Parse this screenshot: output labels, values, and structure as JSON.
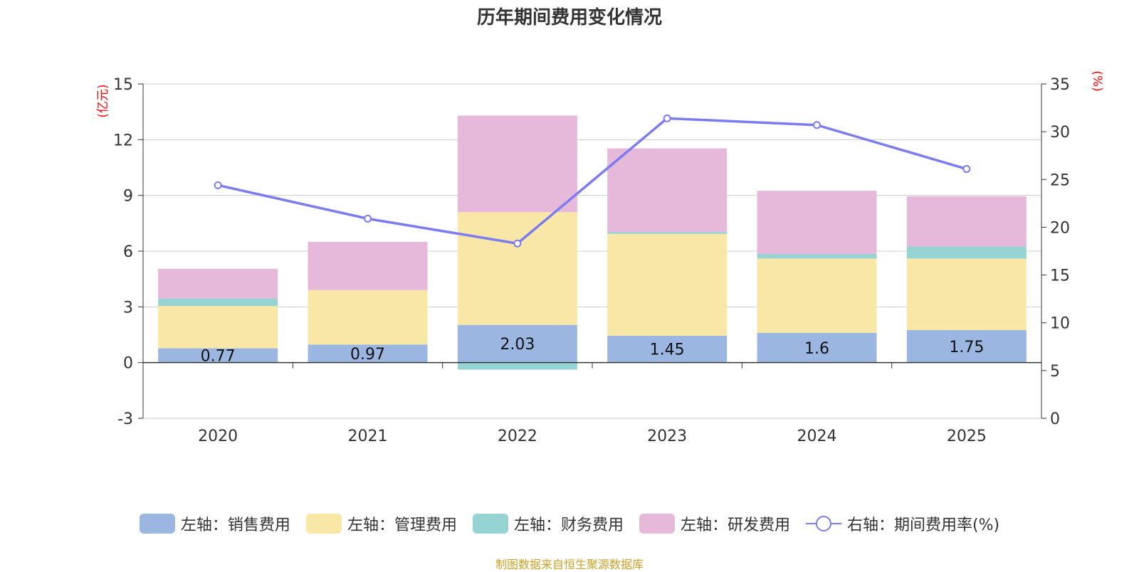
{
  "title": "历年期间费用变化情况",
  "source_note": "制图数据来自恒生聚源数据库",
  "colors": {
    "sales": "#9bb7e1",
    "admin": "#f8e7a7",
    "finance": "#96d3d3",
    "rnd": "#e6b8d9",
    "rate": "#7a7cf0",
    "axis_unit": "#ff0000"
  },
  "chart_data": {
    "type": "bar",
    "stacked": true,
    "title": "历年期间费用变化情况",
    "categories": [
      "2020",
      "2021",
      "2022",
      "2023",
      "2024",
      "2025"
    ],
    "left_axis": {
      "unit_label": "(亿元)",
      "ylim": [
        -3,
        15
      ],
      "ticks": [
        "-3",
        "0",
        "3",
        "6",
        "9",
        "12",
        "15"
      ]
    },
    "right_axis": {
      "unit_label": "(%)",
      "ylim": [
        0,
        35
      ],
      "ticks": [
        "0",
        "5",
        "10",
        "15",
        "20",
        "25",
        "30",
        "35"
      ]
    },
    "series": [
      {
        "name": "左轴：销售费用",
        "key": "sales",
        "axis": "left",
        "values": [
          0.77,
          0.97,
          2.03,
          1.45,
          1.6,
          1.75
        ],
        "labels": [
          "0.77",
          "0.97",
          "2.03",
          "1.45",
          "1.6",
          "1.75"
        ]
      },
      {
        "name": "左轴：管理费用",
        "key": "admin",
        "axis": "left",
        "values": [
          2.28,
          2.93,
          6.07,
          5.48,
          4.0,
          3.85
        ]
      },
      {
        "name": "左轴：财务费用",
        "key": "finance",
        "axis": "left",
        "values": [
          0.4,
          0.0,
          -0.38,
          0.1,
          0.25,
          0.65
        ]
      },
      {
        "name": "左轴：研发费用",
        "key": "rnd",
        "axis": "left",
        "values": [
          1.6,
          2.6,
          5.2,
          4.5,
          3.4,
          2.7
        ]
      },
      {
        "name": "右轴：期间费用率(%)",
        "key": "rate",
        "axis": "right",
        "type": "line",
        "values": [
          24.4,
          20.9,
          18.3,
          31.4,
          30.7,
          26.1
        ]
      }
    ],
    "legend": "bottom-center"
  }
}
